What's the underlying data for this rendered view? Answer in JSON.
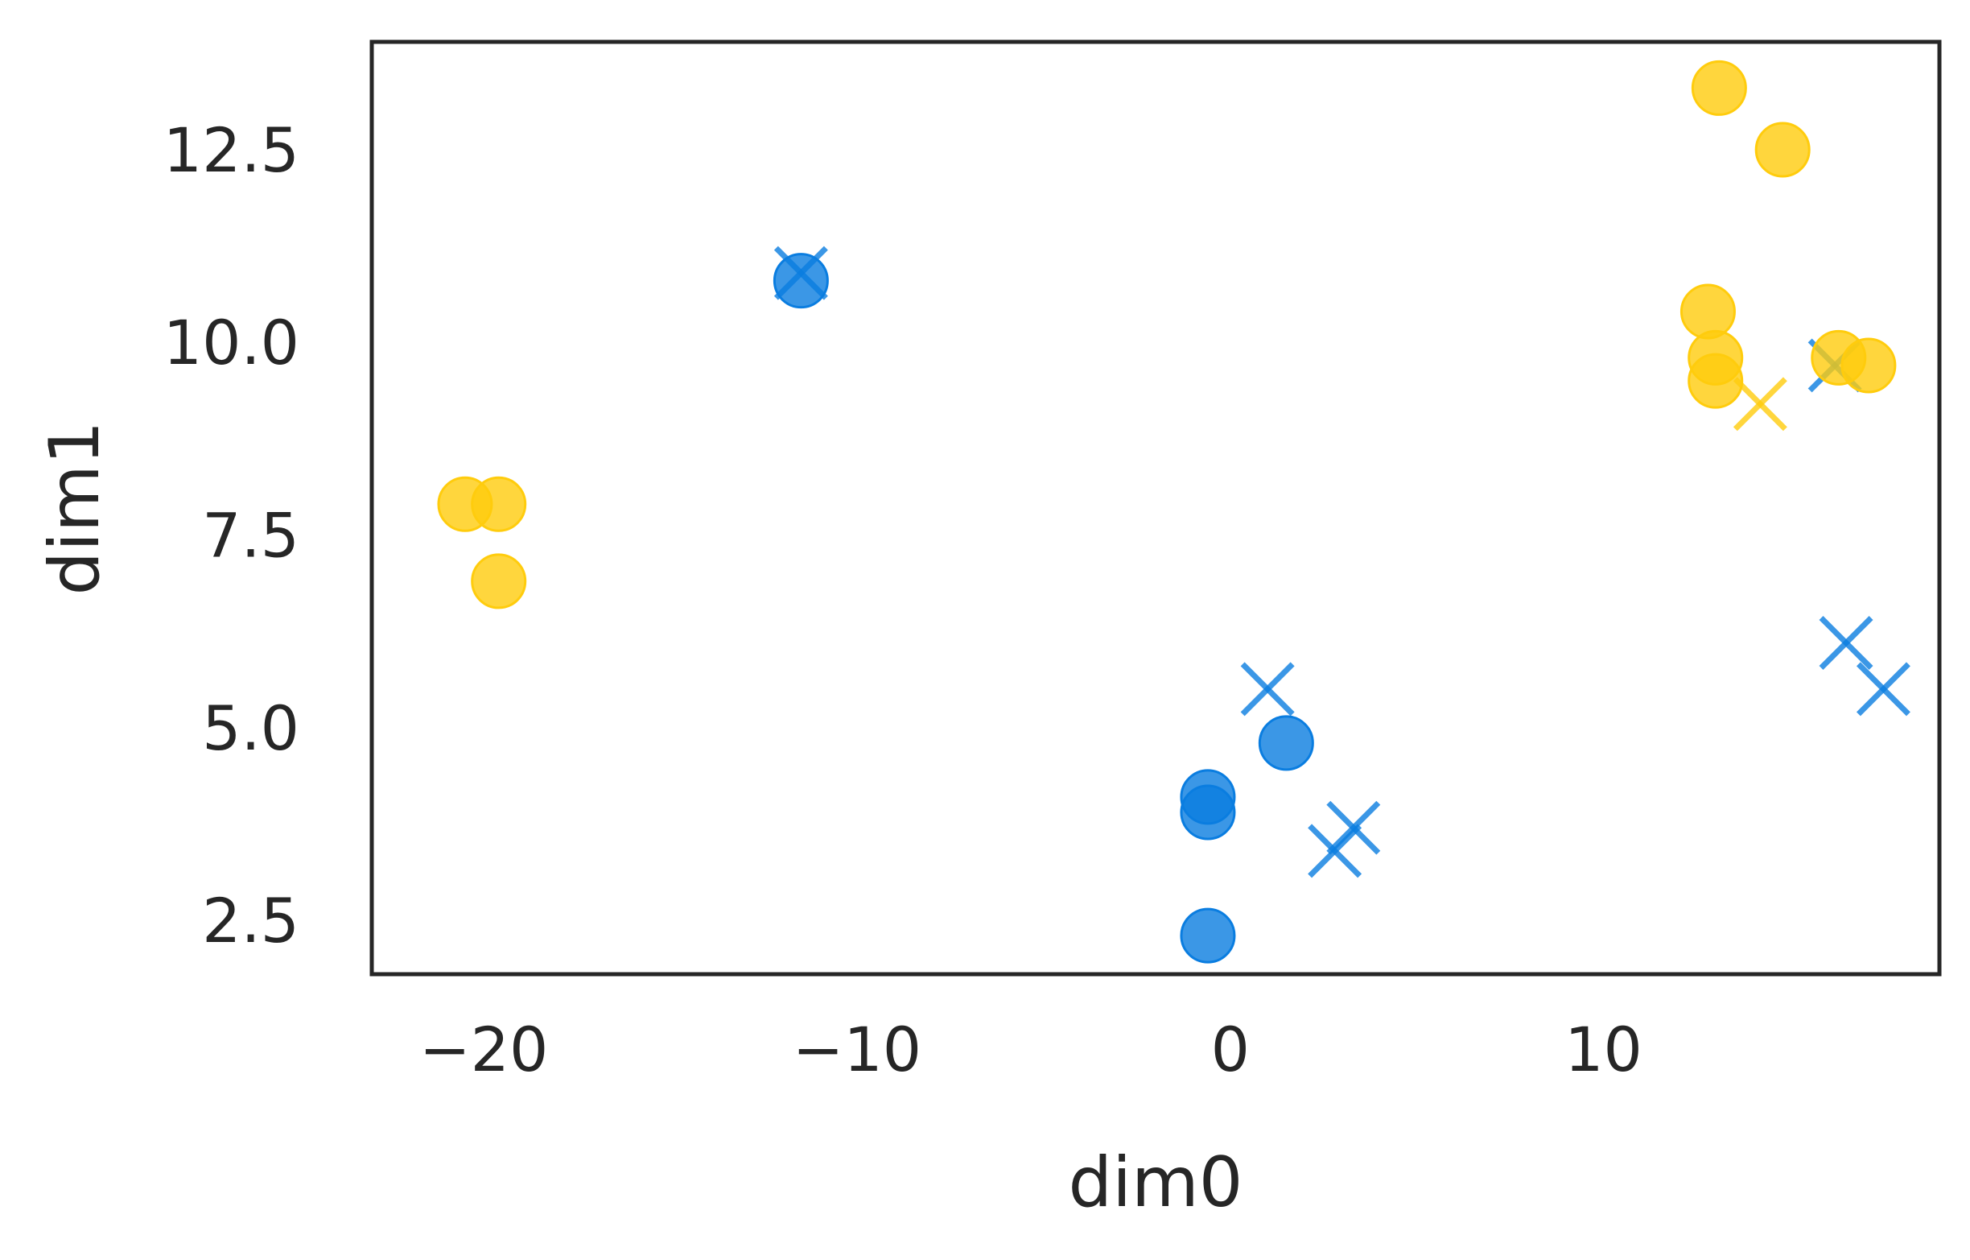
{
  "chart_data": {
    "type": "scatter",
    "xlabel": "dim0",
    "ylabel": "dim1",
    "xlim": [
      -23,
      19
    ],
    "ylim": [
      1.8,
      13.9
    ],
    "xticks": [
      -20,
      -10,
      0,
      10
    ],
    "xtick_labels": [
      "−20",
      "−10",
      "0",
      "10"
    ],
    "yticks": [
      2.5,
      5.0,
      7.5,
      10.0,
      12.5
    ],
    "ytick_labels": [
      "2.5",
      "5.0",
      "7.5",
      "10.0",
      "12.5"
    ],
    "grid": false,
    "colors": {
      "blue": "#0a7de0",
      "yellow": "#ffcc0d",
      "frame": "#262626"
    },
    "series": [
      {
        "marker": "circle",
        "color": "#0a7de0",
        "points": [
          [
            -11.5,
            10.8
          ],
          [
            -0.6,
            4.1
          ],
          [
            -0.6,
            3.9
          ],
          [
            1.5,
            4.8
          ],
          [
            -0.6,
            2.3
          ]
        ]
      },
      {
        "marker": "x",
        "color": "#0a7de0",
        "points": [
          [
            -11.5,
            10.9
          ],
          [
            1.0,
            5.5
          ],
          [
            2.8,
            3.4
          ],
          [
            3.3,
            3.7
          ],
          [
            16.2,
            9.7
          ],
          [
            16.5,
            6.1
          ],
          [
            17.5,
            5.5
          ]
        ]
      },
      {
        "marker": "circle",
        "color": "#ffcc0d",
        "points": [
          [
            -20.5,
            7.9
          ],
          [
            -19.6,
            7.9
          ],
          [
            -19.6,
            6.9
          ],
          [
            13.1,
            13.3
          ],
          [
            14.8,
            12.5
          ],
          [
            12.8,
            10.4
          ],
          [
            13.0,
            9.8
          ],
          [
            13.0,
            9.5
          ],
          [
            16.3,
            9.8
          ],
          [
            17.1,
            9.7
          ]
        ]
      },
      {
        "marker": "x",
        "color": "#ffcc0d",
        "points": [
          [
            14.2,
            9.2
          ]
        ]
      }
    ]
  }
}
